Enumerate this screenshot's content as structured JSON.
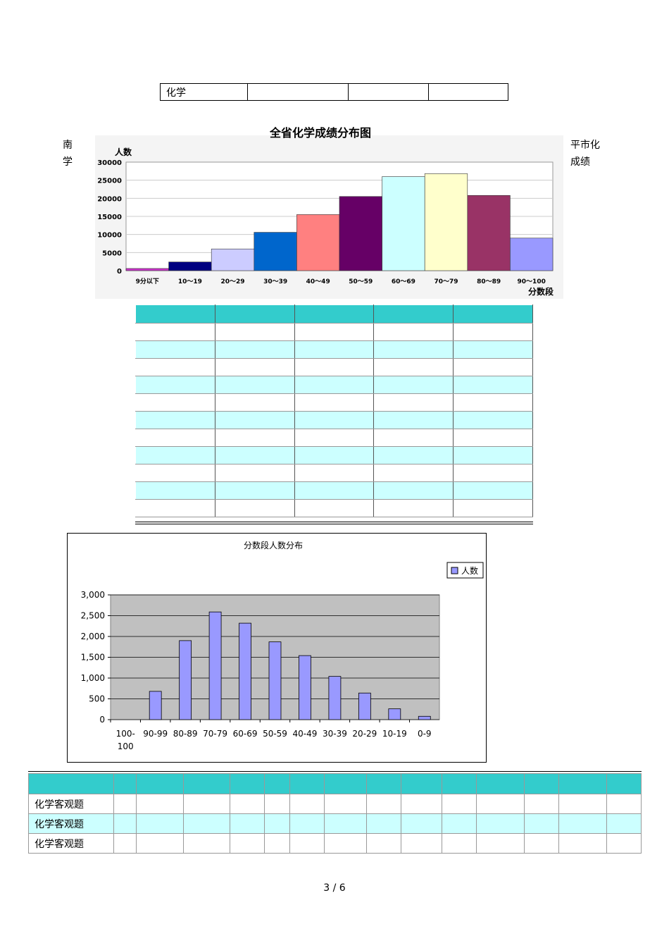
{
  "top_table": {
    "row_label": "化学"
  },
  "side_left": [
    "南",
    "学"
  ],
  "side_right": [
    "平市化",
    "成绩"
  ],
  "chart_data": [
    {
      "type": "bar",
      "title": "全省化学成绩分布图",
      "ylabel": "人数",
      "xlabel": "分数段",
      "categories": [
        "9分以下",
        "10～19",
        "20～29",
        "30～39",
        "40～49",
        "50～59",
        "60～69",
        "70～79",
        "80～89",
        "90～100"
      ],
      "values": [
        600,
        2400,
        6000,
        10600,
        15500,
        20500,
        26000,
        26800,
        20800,
        9000
      ],
      "colors": [
        "#cc33cc",
        "#000080",
        "#ccccff",
        "#0066cc",
        "#ff8080",
        "#660066",
        "#ccffff",
        "#ffffcc",
        "#993366",
        "#9999ff"
      ],
      "ylim": [
        0,
        30000
      ],
      "yticks": [
        "0",
        "5000",
        "10000",
        "15000",
        "20000",
        "25000",
        "30000"
      ],
      "grid": true
    },
    {
      "type": "bar",
      "title": "分数段人数分布",
      "legend": "人数",
      "legend_position": "top-right",
      "categories": [
        "100-\n100",
        "90-99",
        "80-89",
        "70-79",
        "60-69",
        "50-59",
        "40-49",
        "30-39",
        "20-29",
        "10-19",
        "0-9"
      ],
      "values": [
        0,
        680,
        1900,
        2590,
        2320,
        1870,
        1540,
        1040,
        640,
        260,
        80
      ],
      "ylim": [
        0,
        3000
      ],
      "yticks": [
        "0",
        "500",
        "1,000",
        "1,500",
        "2,000",
        "2,500",
        "3,000"
      ],
      "bar_color": "#9999ff",
      "plot_background": "#c0c0c0",
      "grid": true
    }
  ],
  "bottom_table": {
    "rows": [
      "化学客观题",
      "化学客观题",
      "化学客观题"
    ]
  },
  "page_number": "3 / 6"
}
